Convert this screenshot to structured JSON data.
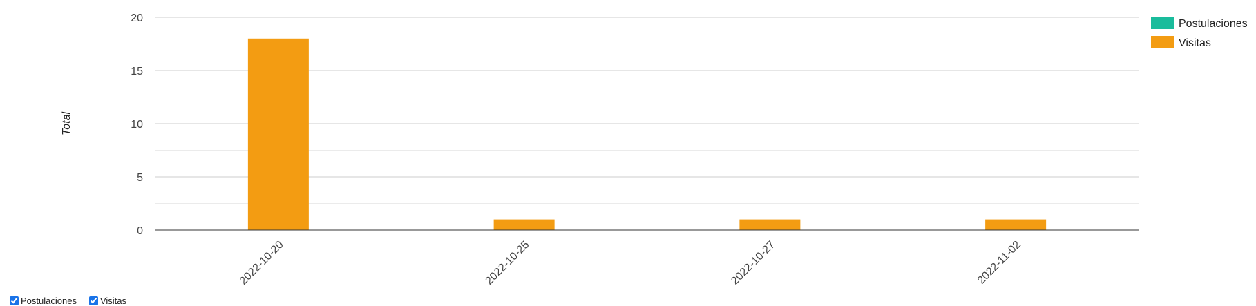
{
  "chart_data": {
    "type": "bar",
    "categories": [
      "2022-10-20",
      "2022-10-25",
      "2022-10-27",
      "2022-11-02"
    ],
    "series": [
      {
        "name": "Postulaciones",
        "color": "#1abc9c",
        "values": [
          0,
          0,
          0,
          0
        ]
      },
      {
        "name": "Visitas",
        "color": "#f39c12",
        "values": [
          18,
          1,
          1,
          1
        ]
      }
    ],
    "ylabel": "Total",
    "xlabel": "",
    "ylim": [
      0,
      20
    ],
    "yticks": [
      0,
      5,
      10,
      15,
      20
    ],
    "grid": true,
    "legend_position": "top-right",
    "x_tick_rotation": -45
  },
  "controls": [
    {
      "label": "Postulaciones",
      "checked": true
    },
    {
      "label": "Visitas",
      "checked": true
    }
  ]
}
